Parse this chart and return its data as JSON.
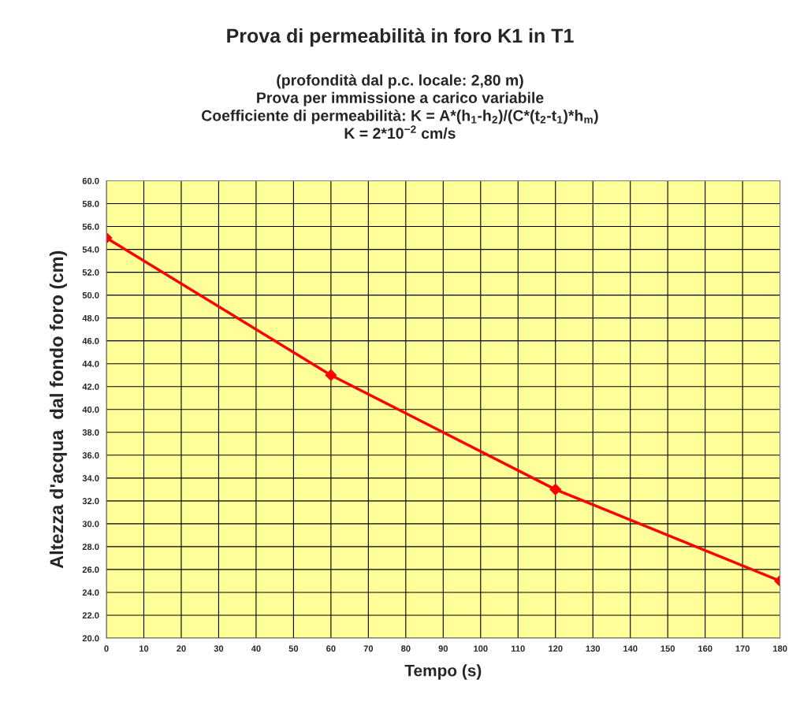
{
  "chart_data": {
    "type": "line",
    "title": "Prova di permeabilità in foro K1 in T1",
    "subtitle": "(profondità dal p.c. locale: 2,80 m)\nProva per immissione a carico variabile\nCoefficiente di permeabilità: K = A*(h$_{1}$-h$_{2}$)/(C*(t$_{2}$-t$_{1}$)*h$_{m}$)\nK = 2*10$^{−2}$ cm/s",
    "xlabel": "Tempo (s)",
    "ylabel": "Altezza d'acqua  dal fondo foro (cm)",
    "x": [
      0,
      60,
      120,
      180
    ],
    "series": [
      {
        "color": "#ff0000",
        "values": [
          55,
          43,
          33,
          25
        ]
      }
    ],
    "xlim": [
      0,
      180
    ],
    "xticks": [
      0,
      10,
      20,
      30,
      40,
      50,
      60,
      70,
      80,
      90,
      100,
      110,
      120,
      130,
      140,
      150,
      160,
      170,
      180
    ],
    "ylim": [
      20,
      60
    ],
    "yticks": [
      {
        "value": 20,
        "label": "20.0"
      },
      {
        "value": 22,
        "label": "22.0"
      },
      {
        "value": 24,
        "label": "24.0"
      },
      {
        "value": 26,
        "label": "26.0"
      },
      {
        "value": 28,
        "label": "28.0"
      },
      {
        "value": 30,
        "label": "30.0"
      },
      {
        "value": 32,
        "label": "32.0"
      },
      {
        "value": 34,
        "label": "34.0"
      },
      {
        "value": 36,
        "label": "36.0"
      },
      {
        "value": 38,
        "label": "38.0"
      },
      {
        "value": 40,
        "label": "40.0"
      },
      {
        "value": 42,
        "label": "42.0"
      },
      {
        "value": 44,
        "label": "44.0"
      },
      {
        "value": 46,
        "label": "46.0"
      },
      {
        "value": 48,
        "label": "48.0"
      },
      {
        "value": 50,
        "label": "50.0"
      },
      {
        "value": 52,
        "label": "52.0"
      },
      {
        "value": 54,
        "label": "54.0"
      },
      {
        "value": 56,
        "label": "56.0"
      },
      {
        "value": 58,
        "label": "58.0"
      },
      {
        "value": 60,
        "label": "60.0"
      }
    ],
    "grid": true,
    "marker": "diamond",
    "line_style": "solid"
  }
}
